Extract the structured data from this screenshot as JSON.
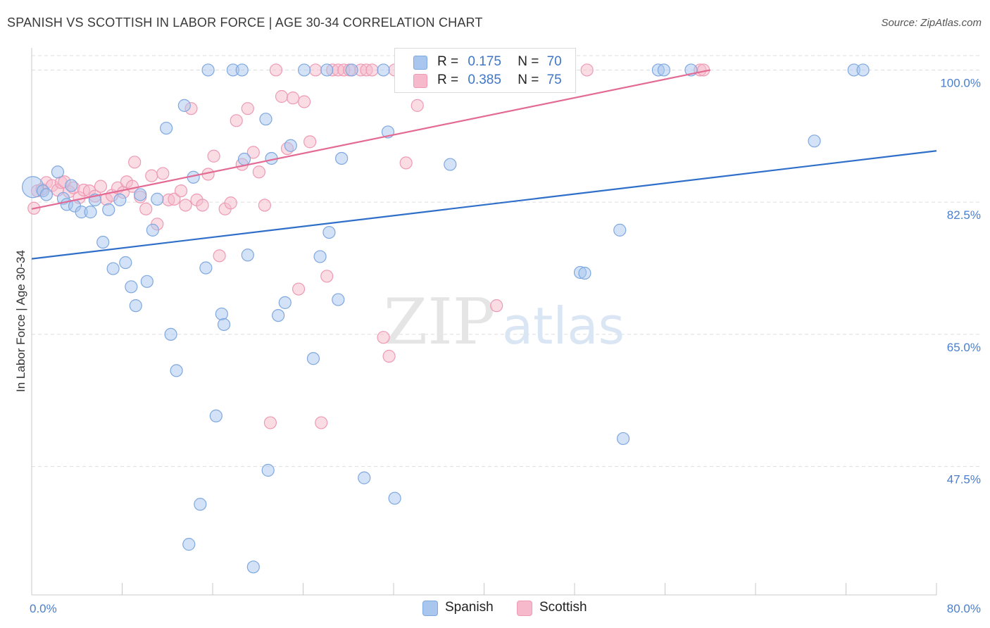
{
  "header": {
    "title": "SPANISH VS SCOTTISH IN LABOR FORCE | AGE 30-34 CORRELATION CHART",
    "source": "Source: ZipAtlas.com"
  },
  "watermark": {
    "zip": "ZIP",
    "atlas": "atlas"
  },
  "legend": {
    "spanish": {
      "r_label": "R =",
      "r_value": "0.175",
      "n_label": "N =",
      "n_value": "70"
    },
    "scottish": {
      "r_label": "R =",
      "r_value": "0.385",
      "n_label": "N =",
      "n_value": "75"
    }
  },
  "bottom_legend": {
    "spanish": "Spanish",
    "scottish": "Scottish"
  },
  "colors": {
    "spanish_fill": "#a8c6ee",
    "spanish_stroke": "#7fa8df",
    "spanish_line": "#2f6fc9",
    "scottish_fill": "#f6b9cc",
    "scottish_stroke": "#ee9ab4",
    "scottish_line": "#e36a94",
    "tick": "#4a7fcf",
    "grid": "#dddddd"
  },
  "chart_data": {
    "type": "scatter",
    "title": "SPANISH VS SCOTTISH IN LABOR FORCE | AGE 30-34 CORRELATION CHART",
    "xlabel": "",
    "ylabel": "In Labor Force | Age 30-34",
    "xlim": [
      0,
      80
    ],
    "ylim": [
      30.5,
      102
    ],
    "x_tick_labels": [
      "0.0%",
      "80.0%"
    ],
    "y_ticks": [
      47.5,
      65.0,
      82.5,
      100.0
    ],
    "y_tick_labels": [
      "47.5%",
      "65.0%",
      "82.5%",
      "100.0%"
    ],
    "series": [
      {
        "name": "Spanish",
        "r": 0.175,
        "n": 70,
        "trend": {
          "x": [
            0,
            80
          ],
          "y": [
            75.0,
            89.3
          ]
        },
        "points": [
          [
            0.1,
            84.5
          ],
          [
            1.0,
            84.0
          ],
          [
            1.3,
            83.5
          ],
          [
            2.3,
            86.5
          ],
          [
            2.8,
            83.0
          ],
          [
            3.1,
            82.2
          ],
          [
            3.5,
            84.7
          ],
          [
            3.8,
            82.0
          ],
          [
            4.4,
            81.2
          ],
          [
            5.2,
            81.2
          ],
          [
            5.6,
            82.8
          ],
          [
            6.3,
            77.2
          ],
          [
            6.8,
            81.5
          ],
          [
            7.2,
            73.7
          ],
          [
            7.8,
            82.8
          ],
          [
            8.3,
            74.5
          ],
          [
            8.8,
            71.3
          ],
          [
            9.2,
            68.8
          ],
          [
            9.6,
            83.5
          ],
          [
            10.2,
            72.0
          ],
          [
            10.7,
            78.8
          ],
          [
            11.1,
            82.9
          ],
          [
            11.9,
            92.3
          ],
          [
            12.3,
            65.0
          ],
          [
            12.8,
            60.2
          ],
          [
            13.5,
            95.3
          ],
          [
            13.9,
            37.2
          ],
          [
            14.3,
            85.8
          ],
          [
            14.9,
            42.5
          ],
          [
            15.4,
            73.8
          ],
          [
            15.6,
            100.0
          ],
          [
            16.3,
            54.2
          ],
          [
            16.8,
            67.7
          ],
          [
            17.0,
            66.3
          ],
          [
            17.8,
            100.0
          ],
          [
            18.6,
            100.0
          ],
          [
            18.8,
            88.2
          ],
          [
            19.1,
            75.5
          ],
          [
            19.6,
            34.2
          ],
          [
            20.7,
            93.5
          ],
          [
            20.9,
            47.0
          ],
          [
            21.2,
            88.3
          ],
          [
            21.8,
            67.5
          ],
          [
            22.4,
            69.2
          ],
          [
            22.9,
            90.0
          ],
          [
            24.1,
            100.0
          ],
          [
            24.9,
            61.8
          ],
          [
            25.5,
            75.3
          ],
          [
            26.1,
            100.0
          ],
          [
            26.3,
            78.5
          ],
          [
            27.1,
            69.6
          ],
          [
            27.4,
            88.3
          ],
          [
            28.3,
            100.0
          ],
          [
            29.4,
            46.0
          ],
          [
            31.1,
            100.0
          ],
          [
            31.5,
            91.8
          ],
          [
            32.1,
            43.3
          ],
          [
            34.6,
            100.0
          ],
          [
            37.0,
            87.5
          ],
          [
            41.5,
            100.0
          ],
          [
            48.5,
            73.2
          ],
          [
            48.9,
            73.1
          ],
          [
            52.0,
            78.8
          ],
          [
            52.3,
            51.2
          ],
          [
            55.4,
            100.0
          ],
          [
            55.9,
            100.0
          ],
          [
            58.3,
            100.0
          ],
          [
            69.2,
            90.6
          ],
          [
            72.7,
            100.0
          ],
          [
            73.5,
            100.0
          ]
        ]
      },
      {
        "name": "Scottish",
        "r": 0.385,
        "n": 75,
        "trend": {
          "x": [
            0,
            60
          ],
          "y": [
            81.6,
            100.0
          ]
        },
        "points": [
          [
            0.2,
            81.7
          ],
          [
            0.5,
            84.0
          ],
          [
            0.9,
            84.2
          ],
          [
            1.3,
            85.1
          ],
          [
            1.8,
            84.7
          ],
          [
            2.3,
            84.1
          ],
          [
            2.6,
            85.1
          ],
          [
            2.9,
            85.2
          ],
          [
            3.3,
            83.9
          ],
          [
            3.7,
            84.4
          ],
          [
            4.2,
            83.1
          ],
          [
            4.6,
            84.1
          ],
          [
            5.1,
            84.0
          ],
          [
            5.6,
            83.3
          ],
          [
            6.1,
            84.6
          ],
          [
            6.6,
            82.9
          ],
          [
            7.1,
            83.4
          ],
          [
            7.6,
            84.4
          ],
          [
            8.1,
            83.8
          ],
          [
            8.4,
            85.2
          ],
          [
            8.9,
            84.6
          ],
          [
            9.1,
            87.8
          ],
          [
            9.6,
            83.2
          ],
          [
            10.1,
            81.6
          ],
          [
            10.6,
            86.0
          ],
          [
            11.1,
            79.6
          ],
          [
            11.6,
            86.3
          ],
          [
            12.1,
            82.8
          ],
          [
            12.6,
            82.9
          ],
          [
            13.2,
            84.0
          ],
          [
            13.6,
            82.1
          ],
          [
            14.1,
            94.9
          ],
          [
            14.6,
            82.8
          ],
          [
            15.1,
            82.1
          ],
          [
            15.6,
            86.2
          ],
          [
            16.1,
            88.6
          ],
          [
            16.6,
            75.4
          ],
          [
            17.1,
            81.6
          ],
          [
            17.6,
            82.4
          ],
          [
            18.1,
            93.3
          ],
          [
            18.6,
            87.5
          ],
          [
            19.1,
            94.9
          ],
          [
            19.6,
            89.1
          ],
          [
            20.1,
            86.5
          ],
          [
            20.6,
            82.1
          ],
          [
            21.1,
            53.3
          ],
          [
            21.6,
            100.0
          ],
          [
            22.1,
            96.5
          ],
          [
            22.6,
            89.6
          ],
          [
            23.1,
            96.3
          ],
          [
            23.6,
            71.0
          ],
          [
            24.1,
            95.8
          ],
          [
            24.6,
            90.5
          ],
          [
            25.1,
            100.0
          ],
          [
            25.6,
            53.3
          ],
          [
            26.1,
            72.7
          ],
          [
            26.6,
            100.0
          ],
          [
            27.1,
            100.0
          ],
          [
            27.6,
            100.0
          ],
          [
            28.1,
            100.0
          ],
          [
            29.1,
            100.0
          ],
          [
            29.6,
            100.0
          ],
          [
            30.1,
            100.0
          ],
          [
            31.1,
            64.6
          ],
          [
            31.6,
            62.1
          ],
          [
            32.1,
            100.0
          ],
          [
            33.1,
            87.7
          ],
          [
            34.1,
            95.3
          ],
          [
            36.1,
            100.0
          ],
          [
            38.1,
            100.0
          ],
          [
            40.1,
            100.0
          ],
          [
            41.1,
            68.8
          ],
          [
            49.1,
            100.0
          ],
          [
            59.1,
            100.0
          ],
          [
            59.4,
            100.0
          ]
        ]
      }
    ]
  }
}
